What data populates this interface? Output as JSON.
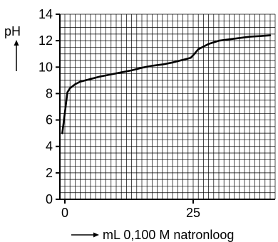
{
  "chart_data": {
    "type": "line",
    "ylabel": "pH",
    "xlabel": "mL 0,100 M natronloog",
    "xlim": [
      -1,
      40
    ],
    "ylim": [
      0,
      14
    ],
    "x_ticks": [
      0,
      25
    ],
    "y_ticks": [
      0,
      2,
      4,
      6,
      8,
      10,
      12,
      14
    ],
    "grid": true,
    "minor_grid_x_step": 1,
    "minor_grid_y_step": 0.5,
    "series": [
      {
        "x": [
          -0.5,
          0.5,
          1,
          2,
          3,
          5,
          7,
          9,
          11,
          13,
          15,
          17,
          19,
          21,
          23,
          24.5,
          25,
          26,
          28,
          30,
          32,
          34,
          36,
          38,
          40
        ],
        "y": [
          5.0,
          8.1,
          8.4,
          8.7,
          8.9,
          9.1,
          9.3,
          9.45,
          9.6,
          9.75,
          9.95,
          10.1,
          10.2,
          10.35,
          10.55,
          10.7,
          10.9,
          11.35,
          11.75,
          12.0,
          12.1,
          12.2,
          12.3,
          12.35,
          12.4
        ]
      }
    ]
  }
}
